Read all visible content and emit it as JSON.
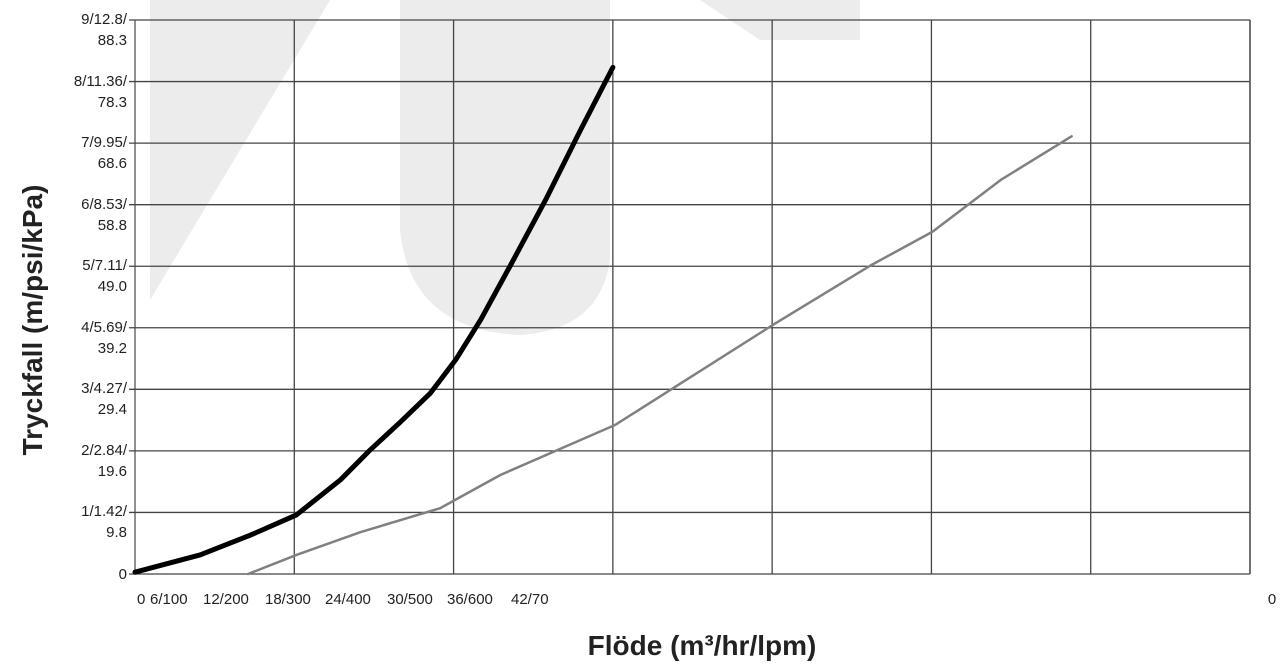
{
  "chart_data": {
    "type": "line",
    "xlabel": "Flöde (m³/hr/lpm)",
    "ylabel": "Tryckfall (m/psi/kPa)",
    "xlim": [
      0,
      42
    ],
    "xticks": [
      {
        "value": 0,
        "label": "0"
      },
      {
        "value": 6,
        "label": "6/100"
      },
      {
        "value": 12,
        "label": "12/200"
      },
      {
        "value": 18,
        "label": "18/300"
      },
      {
        "value": 24,
        "label": "24/400"
      },
      {
        "value": 30,
        "label": "30/500"
      },
      {
        "value": 36,
        "label": "36/600"
      },
      {
        "value": 42,
        "label": "42/70"
      }
    ],
    "x_end_label": "0",
    "ylim": [
      0,
      9
    ],
    "yticks": [
      {
        "value": 0,
        "label": "0"
      },
      {
        "value": 1,
        "label": "1/1.42/\n9.8"
      },
      {
        "value": 2,
        "label": "2/2.84/\n19.6"
      },
      {
        "value": 3,
        "label": "3/4.27/\n29.4"
      },
      {
        "value": 4,
        "label": "4/5.69/\n39.2"
      },
      {
        "value": 5,
        "label": "5/7.11/\n49.0"
      },
      {
        "value": 6,
        "label": "6/8.53/\n58.8"
      },
      {
        "value": 7,
        "label": "7/9.95/\n68.6"
      },
      {
        "value": 8,
        "label": "8/11.36/\n78.3"
      },
      {
        "value": 9,
        "label": "9/12.8/\n88.3"
      }
    ],
    "grid": true,
    "series": [
      {
        "color": "#000000",
        "width": 5,
        "x": [
          0,
          2.45,
          4.34,
          6.08,
          7.74,
          8.87,
          10.0,
          11.13,
          12.08,
          13.02,
          14.15,
          15.47,
          16.79,
          18.0
        ],
        "values": [
          0.03,
          0.31,
          0.63,
          0.96,
          1.53,
          2.02,
          2.47,
          2.94,
          3.48,
          4.13,
          5.02,
          6.08,
          7.22,
          8.23
        ]
      },
      {
        "color": "#808080",
        "width": 2.5,
        "x": [
          4.26,
          6.08,
          8.49,
          11.5,
          13.77,
          18.08,
          24.04,
          27.74,
          30.04,
          32.64,
          35.28
        ],
        "values": [
          0,
          0.31,
          0.68,
          1.07,
          1.61,
          2.42,
          4.05,
          5.02,
          5.56,
          6.41,
          7.11
        ]
      }
    ]
  }
}
